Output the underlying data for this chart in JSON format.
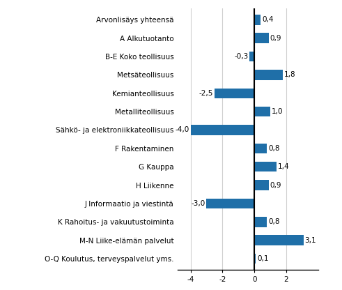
{
  "categories": [
    "O-Q Koulutus, terveyspalvelut yms.",
    "M-N Liike-elämän palvelut",
    "K Rahoitus- ja vakuutustoiminta",
    "J Informaatio ja viestintä",
    "H Liikenne",
    "G Kauppa",
    "F Rakentaminen",
    "Sähkö- ja elektroniikkateollisuus",
    "Metalliteollisuus",
    "Kemianteollisuus",
    "Metsäteollisuus",
    "B-E Koko teollisuus",
    "A Alkutuotanto",
    "Arvonlisäys yhteensä"
  ],
  "values": [
    0.1,
    3.1,
    0.8,
    -3.0,
    0.9,
    1.4,
    0.8,
    -4.0,
    1.0,
    -2.5,
    1.8,
    -0.3,
    0.9,
    0.4
  ],
  "bar_color": "#1f6fa8",
  "xlim": [
    -4.8,
    4.0
  ],
  "xticks": [
    -4,
    -2,
    0,
    2
  ],
  "label_fontsize": 7.5,
  "value_fontsize": 7.5,
  "background_color": "#ffffff",
  "grid_color": "#d0d0d0",
  "bar_height": 0.55
}
